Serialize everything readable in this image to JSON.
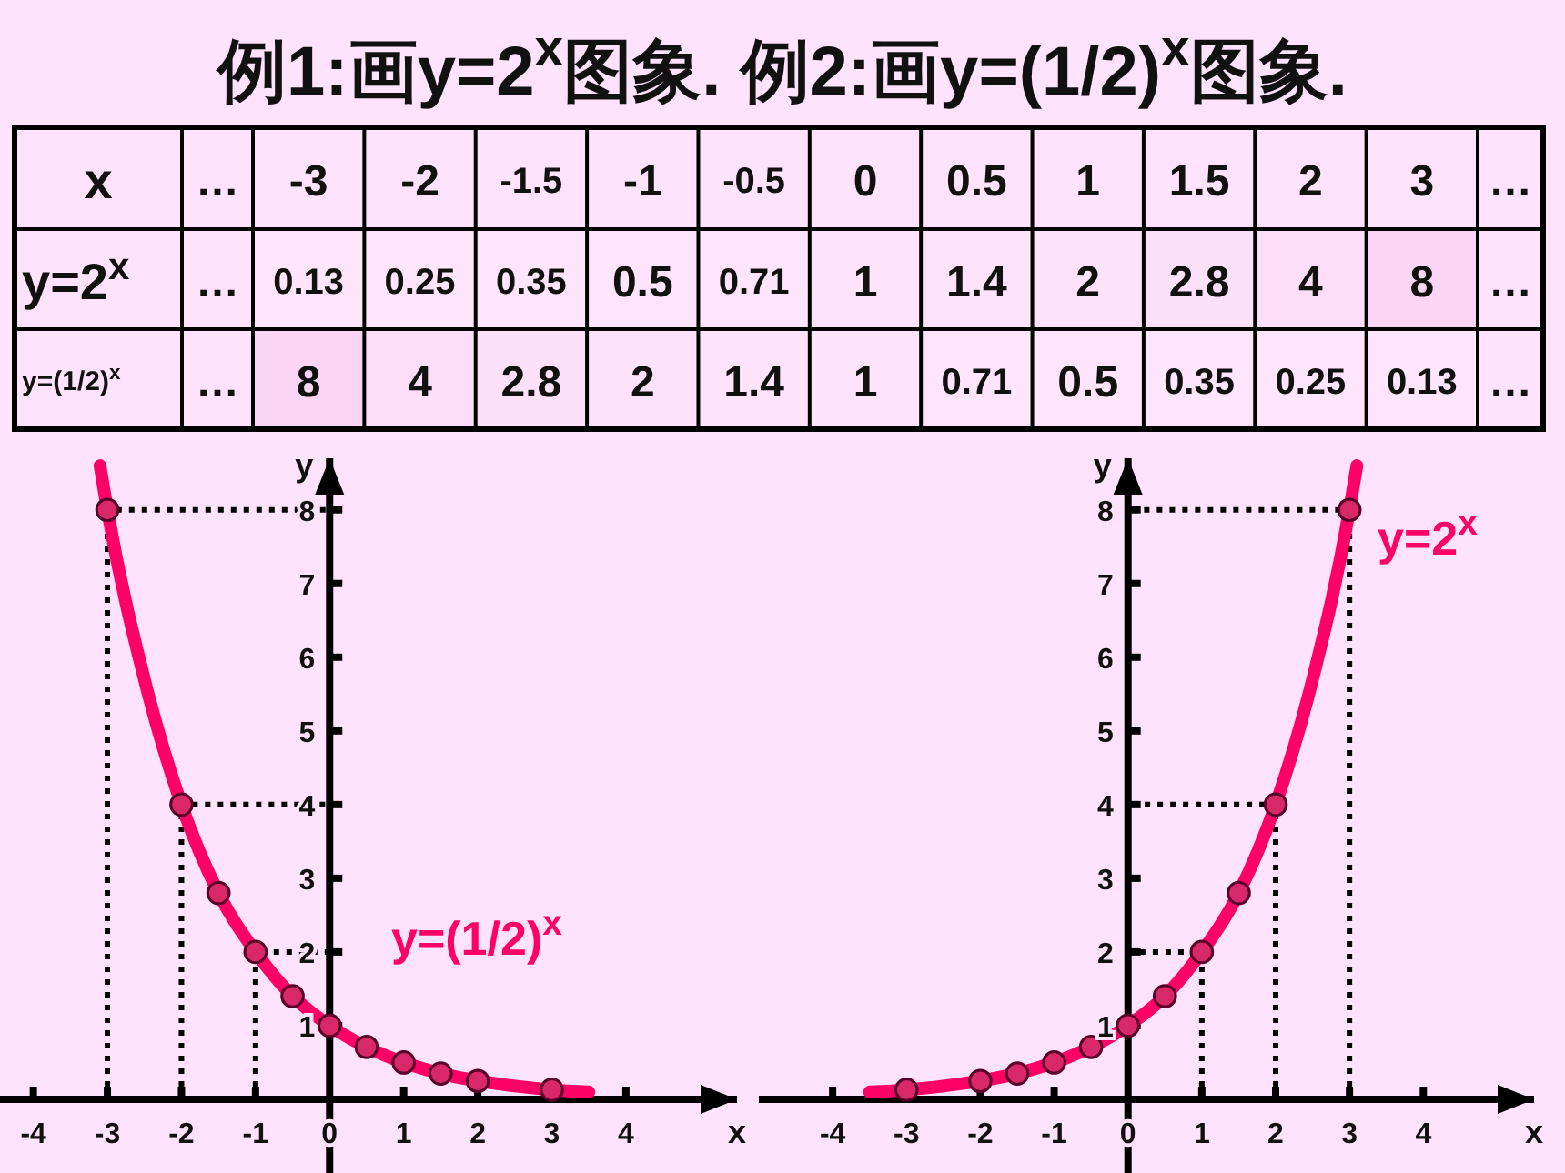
{
  "chart_data": [
    {
      "type": "heatmap",
      "title": "例1:画y=2$^{x}$图象. 例2:画y=(1/2)$^{x}$图象.",
      "xlabel": "x",
      "categories": [
        "…",
        "-3",
        "-2",
        "-1.5",
        "-1",
        "-0.5",
        "0",
        "0.5",
        "1",
        "1.5",
        "2",
        "3",
        "…"
      ],
      "y_categories": [
        "y=2$^{x}$",
        "y=(1/2)$^{x}$"
      ],
      "cells": [
        [
          null,
          0.13,
          0.25,
          0.35,
          0.5,
          0.71,
          1,
          1.4,
          2,
          2.8,
          4,
          8,
          null
        ],
        [
          null,
          8,
          4,
          2.8,
          2,
          1.4,
          1,
          0.71,
          0.5,
          0.35,
          0.25,
          0.13,
          null
        ]
      ],
      "cell_labels": [
        [
          "…",
          "0.13",
          "0.25",
          "0.35",
          "0.5",
          "0.71",
          "1",
          "1.4",
          "2",
          "2.8",
          "4",
          "8",
          "…"
        ],
        [
          "…",
          "8",
          "4",
          "2.8",
          "2",
          "1.4",
          "1",
          "0.71",
          "0.5",
          "0.35",
          "0.25",
          "0.13",
          "…"
        ]
      ]
    },
    {
      "type": "line",
      "xlabel": "x",
      "ylabel": "y",
      "xlim": [
        -4.45,
        5.5
      ],
      "ylim": [
        -1,
        8.7
      ],
      "xticks": [
        -4,
        -3,
        -2,
        -1,
        0,
        1,
        2,
        3,
        4
      ],
      "yticks": [
        1,
        2,
        3,
        4,
        5,
        6,
        7,
        8
      ],
      "legend": false,
      "series": [
        {
          "type": "line",
          "color": "#000000",
          "line_style": "dotted",
          "x": [
            -3,
            -3,
            0
          ],
          "values": [
            0,
            8,
            8
          ]
        },
        {
          "type": "line",
          "color": "#000000",
          "line_style": "dotted",
          "x": [
            -2,
            -2,
            0
          ],
          "values": [
            0,
            4,
            4
          ]
        },
        {
          "type": "line",
          "color": "#000000",
          "line_style": "dotted",
          "x": [
            -1,
            -1,
            0
          ],
          "values": [
            0,
            2,
            2
          ]
        },
        {
          "type": "line",
          "name": "y=(1/2)$^{x}$",
          "color": "#ff0066",
          "marker": "none",
          "x": [
            -3.1,
            -3,
            -2.5,
            -2,
            -1.5,
            -1,
            -0.5,
            0,
            0.5,
            1,
            1.5,
            2,
            2.5,
            3,
            3.5
          ],
          "values": [
            8.6,
            8,
            5.7,
            4,
            2.8,
            2,
            1.4,
            1,
            0.71,
            0.5,
            0.35,
            0.25,
            0.18,
            0.13,
            0.1
          ]
        },
        {
          "type": "scatter",
          "color": "#d8286a",
          "marker": "circle",
          "x": [
            -3,
            -2,
            -1.5,
            -1,
            -0.5,
            0,
            0.5,
            1,
            1.5,
            2,
            3
          ],
          "values": [
            8,
            4,
            2.8,
            2,
            1.4,
            1,
            0.71,
            0.5,
            0.35,
            0.25,
            0.13
          ]
        }
      ]
    },
    {
      "type": "line",
      "xlabel": "x",
      "ylabel": "y",
      "xlim": [
        -5,
        5.5
      ],
      "ylim": [
        -1,
        8.7
      ],
      "xticks": [
        -4,
        -3,
        -2,
        -1,
        0,
        1,
        2,
        3,
        4
      ],
      "yticks": [
        1,
        2,
        3,
        4,
        5,
        6,
        7,
        8
      ],
      "legend": false,
      "series": [
        {
          "type": "line",
          "color": "#000000",
          "line_style": "dotted",
          "x": [
            1,
            1,
            0
          ],
          "values": [
            0,
            2,
            2
          ]
        },
        {
          "type": "line",
          "color": "#000000",
          "line_style": "dotted",
          "x": [
            2,
            2,
            0
          ],
          "values": [
            0,
            4,
            4
          ]
        },
        {
          "type": "line",
          "color": "#000000",
          "line_style": "dotted",
          "x": [
            3,
            3,
            0
          ],
          "values": [
            0,
            8,
            8
          ]
        },
        {
          "type": "line",
          "name": "y=2$^{x}$",
          "color": "#ff0066",
          "marker": "none",
          "x": [
            -3.5,
            -3,
            -2.5,
            -2,
            -1.5,
            -1,
            -0.5,
            0,
            0.5,
            1,
            1.5,
            2,
            2.5,
            3,
            3.1
          ],
          "values": [
            0.1,
            0.13,
            0.18,
            0.25,
            0.35,
            0.5,
            0.71,
            1,
            1.4,
            2,
            2.8,
            4,
            5.7,
            8,
            8.6
          ]
        },
        {
          "type": "scatter",
          "color": "#d8286a",
          "marker": "circle",
          "x": [
            -3,
            -2,
            -1.5,
            -1,
            -0.5,
            0,
            0.5,
            1,
            1.5,
            2,
            3
          ],
          "values": [
            0.13,
            0.25,
            0.35,
            0.5,
            0.71,
            1,
            1.4,
            2,
            2.8,
            4,
            8
          ]
        }
      ]
    }
  ]
}
